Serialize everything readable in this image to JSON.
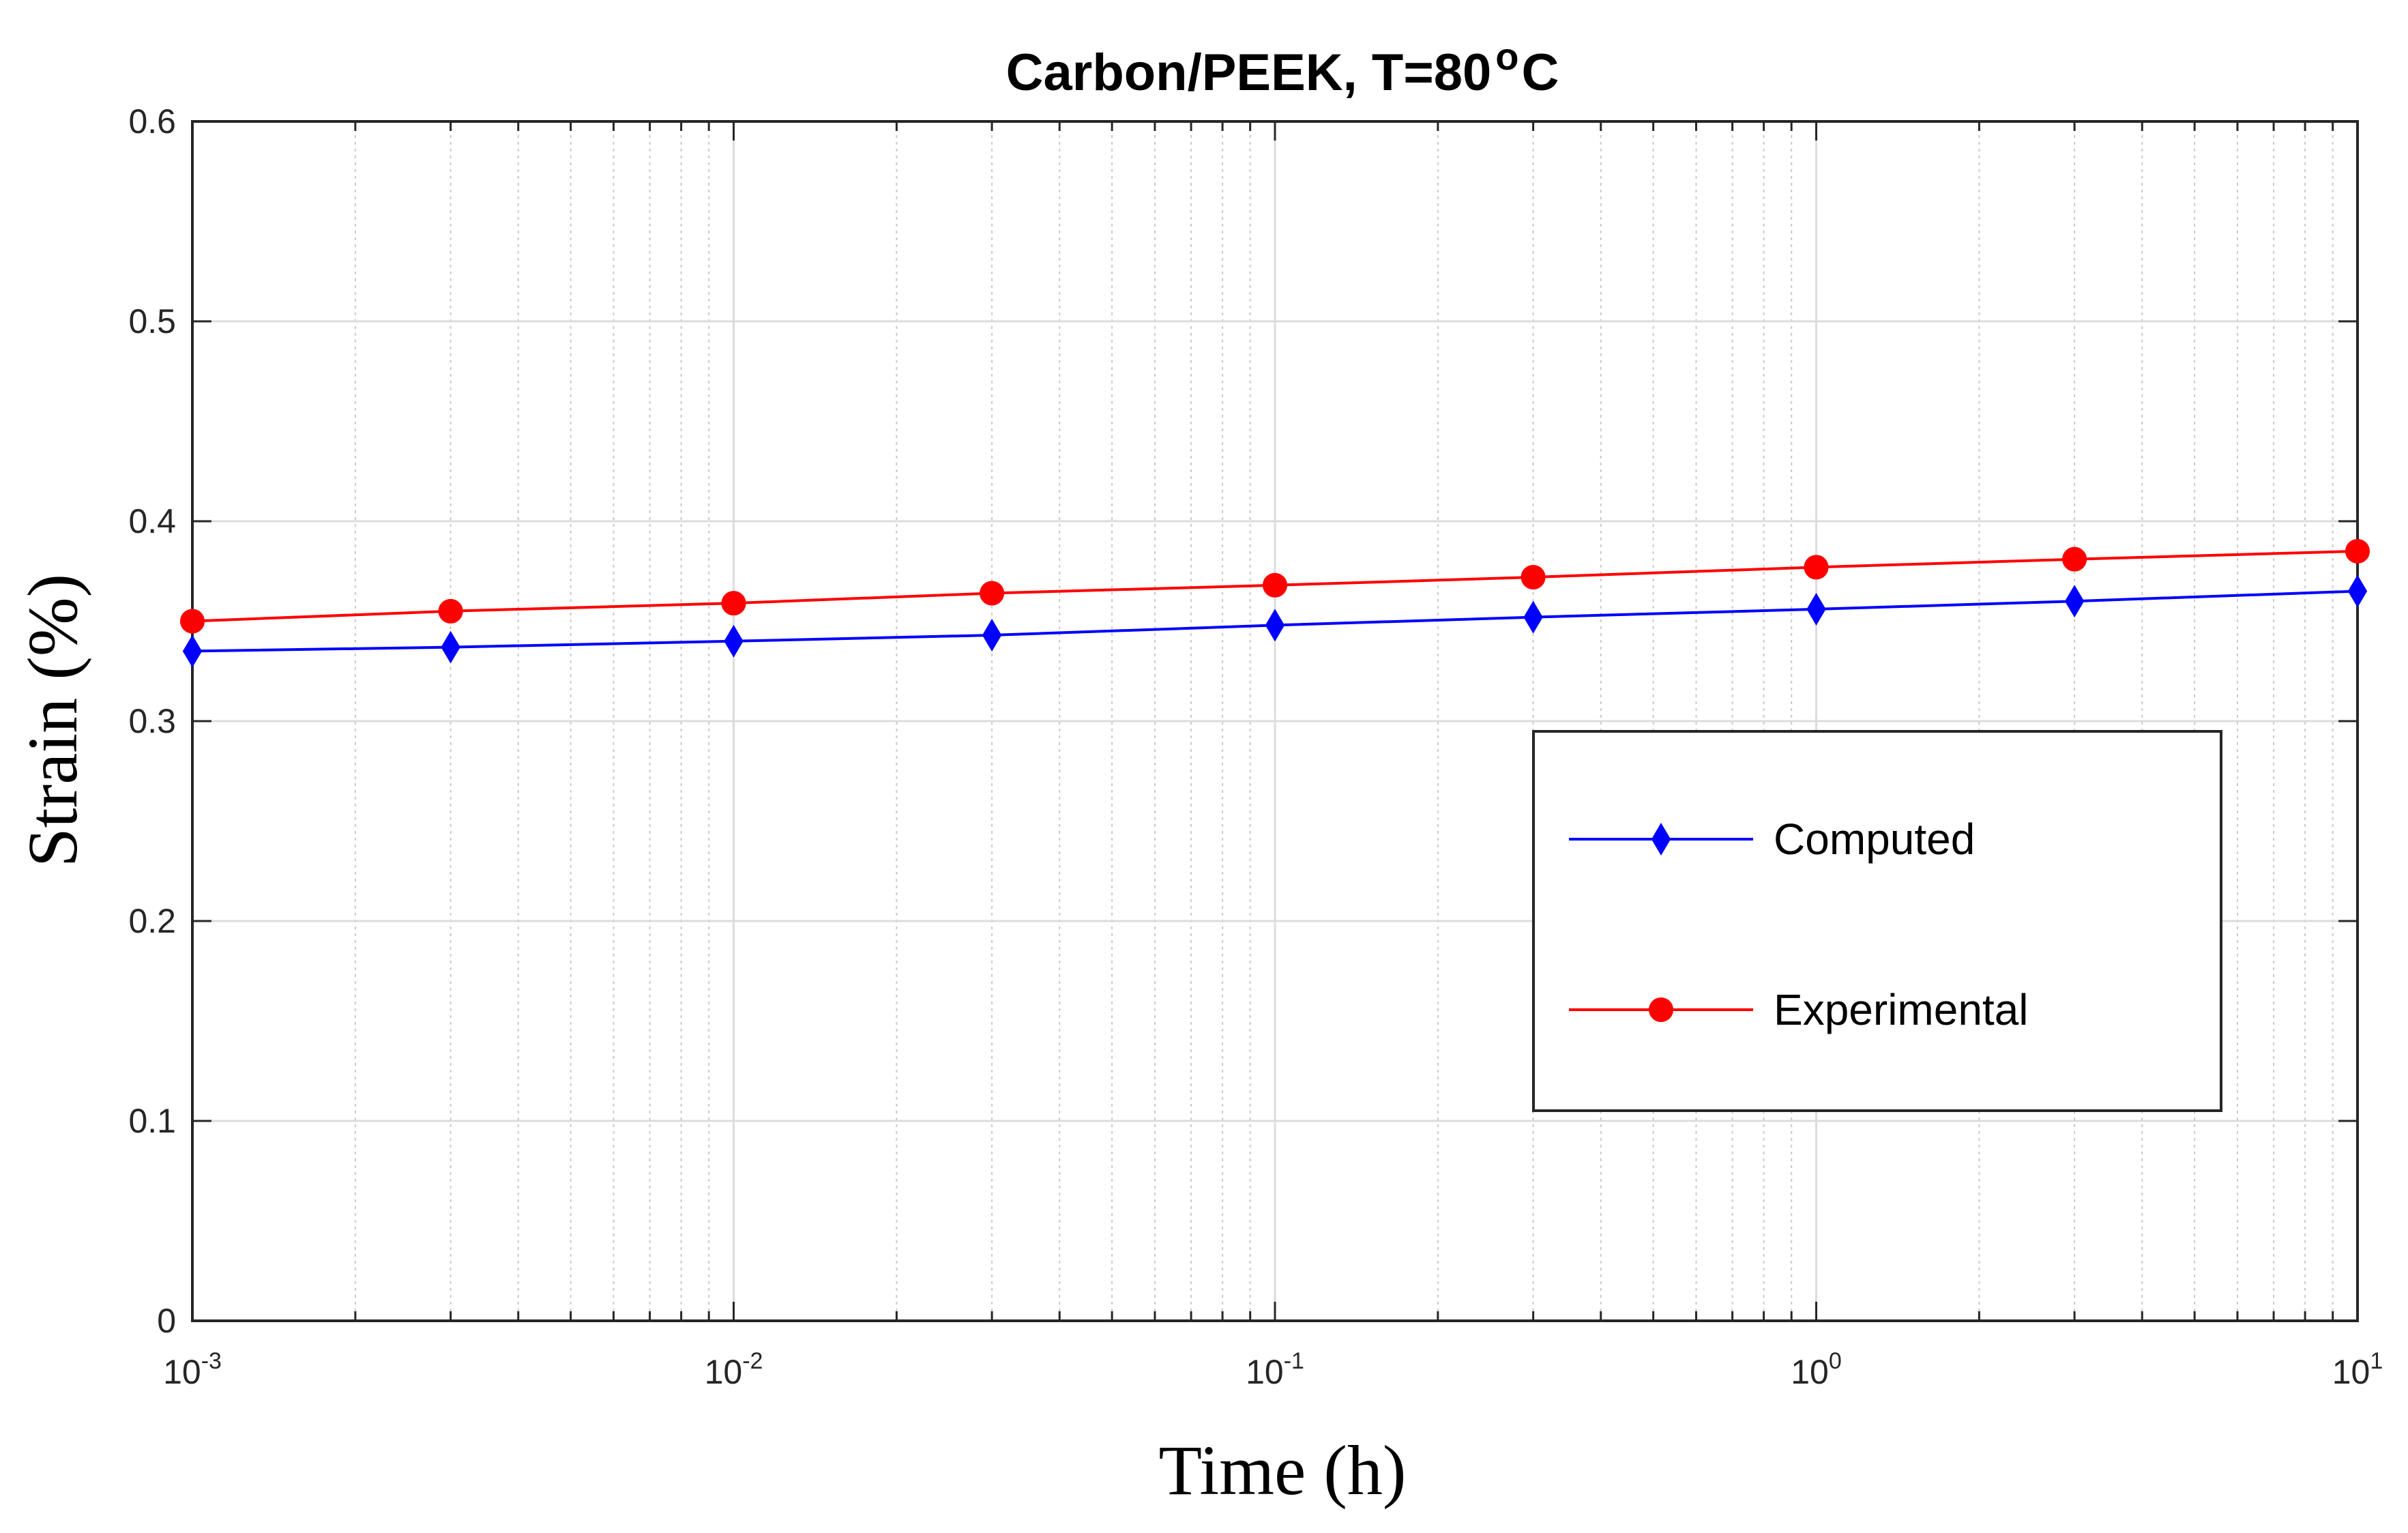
{
  "chart_data": {
    "type": "line",
    "title": "Carbon/PEEK, T=80",
    "title_superscript": "o",
    "title_suffix": "C",
    "xlabel": "Time (h)",
    "ylabel": "Strain (%)",
    "x_scale": "log",
    "xlim": [
      0.001,
      10
    ],
    "ylim": [
      0,
      0.6
    ],
    "grid": true,
    "legend_position": "right",
    "x_ticks": [
      {
        "base": "10",
        "exp": "-3"
      },
      {
        "base": "10",
        "exp": "-2"
      },
      {
        "base": "10",
        "exp": "-1"
      },
      {
        "base": "10",
        "exp": "0"
      },
      {
        "base": "10",
        "exp": "1"
      }
    ],
    "y_ticks": [
      "0",
      "0.1",
      "0.2",
      "0.3",
      "0.4",
      "0.5",
      "0.6"
    ],
    "series": [
      {
        "name": "Computed",
        "color": "#0000ff",
        "marker": "diamond",
        "x": [
          0.001,
          0.003,
          0.01,
          0.03,
          0.1,
          0.3,
          1,
          3,
          10
        ],
        "y": [
          0.335,
          0.337,
          0.34,
          0.343,
          0.348,
          0.352,
          0.356,
          0.36,
          0.365
        ]
      },
      {
        "name": "Experimental",
        "color": "#ff0000",
        "marker": "circle",
        "x": [
          0.001,
          0.003,
          0.01,
          0.03,
          0.1,
          0.3,
          1,
          3,
          10
        ],
        "y": [
          0.35,
          0.355,
          0.359,
          0.364,
          0.368,
          0.372,
          0.377,
          0.381,
          0.385
        ]
      }
    ]
  }
}
